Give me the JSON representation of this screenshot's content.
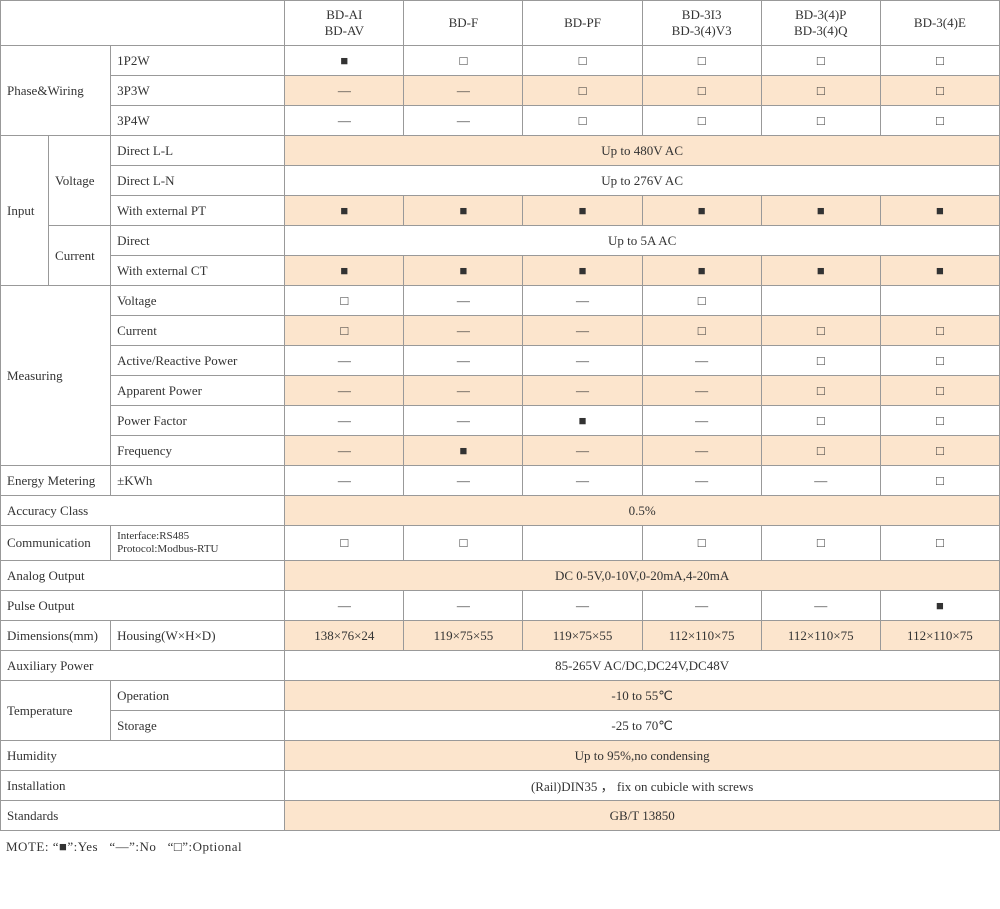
{
  "columns": [
    {
      "line1": "BD-AI",
      "line2": "BD-AV"
    },
    {
      "line1": "BD-F",
      "line2": ""
    },
    {
      "line1": "BD-PF",
      "line2": ""
    },
    {
      "line1": "BD-3I3",
      "line2": "BD-3(4)V3"
    },
    {
      "line1": "BD-3(4)P",
      "line2": "BD-3(4)Q"
    },
    {
      "line1": "BD-3(4)E",
      "line2": ""
    }
  ],
  "symbols": {
    "yes": "■",
    "no": "—",
    "opt": "□"
  },
  "colors": {
    "shade": "#fce5cd",
    "border": "#999999",
    "text": "#333333",
    "bg": "#ffffff"
  },
  "phase": {
    "label": "Phase&Wiring",
    "rows": [
      {
        "label": "1P2W",
        "vals": [
          "■",
          "□",
          "□",
          "□",
          "□",
          "□"
        ],
        "shaded": false
      },
      {
        "label": "3P3W",
        "vals": [
          "—",
          "—",
          "□",
          "□",
          "□",
          "□"
        ],
        "shaded": true
      },
      {
        "label": "3P4W",
        "vals": [
          "—",
          "—",
          "□",
          "□",
          "□",
          "□"
        ],
        "shaded": false
      }
    ]
  },
  "input": {
    "label": "Input",
    "voltage": {
      "label": "Voltage",
      "rows": [
        {
          "label": "Direct L-L",
          "span": "Up to 480V AC",
          "shaded": true
        },
        {
          "label": "Direct L-N",
          "span": "Up to 276V AC",
          "shaded": false
        },
        {
          "label": "With external PT",
          "vals": [
            "■",
            "■",
            "■",
            "■",
            "■",
            "■"
          ],
          "shaded": true
        }
      ]
    },
    "current": {
      "label": "Current",
      "rows": [
        {
          "label": "Direct",
          "span": "Up to 5A AC",
          "shaded": false
        },
        {
          "label": "With external CT",
          "vals": [
            "■",
            "■",
            "■",
            "■",
            "■",
            "■"
          ],
          "shaded": true
        }
      ]
    }
  },
  "measuring": {
    "label": "Measuring",
    "rows": [
      {
        "label": "Voltage",
        "vals": [
          "□",
          "—",
          "—",
          "□",
          "",
          ""
        ],
        "shaded": false
      },
      {
        "label": "Current",
        "vals": [
          "□",
          "—",
          "—",
          "□",
          "□",
          "□"
        ],
        "shaded": true
      },
      {
        "label": "Active/Reactive Power",
        "vals": [
          "—",
          "—",
          "—",
          "—",
          "□",
          "□"
        ],
        "shaded": false
      },
      {
        "label": "Apparent Power",
        "vals": [
          "—",
          "—",
          "—",
          "—",
          "□",
          "□"
        ],
        "shaded": true
      },
      {
        "label": "Power Factor",
        "vals": [
          "—",
          "—",
          "■",
          "—",
          "□",
          "□"
        ],
        "shaded": false
      },
      {
        "label": "Frequency",
        "vals": [
          "—",
          "■",
          "—",
          "—",
          "□",
          "□"
        ],
        "shaded": true
      }
    ]
  },
  "energy": {
    "label": "Energy Metering",
    "sub": "±KWh",
    "vals": [
      "—",
      "—",
      "—",
      "—",
      "—",
      "□"
    ],
    "shaded": false
  },
  "accuracy": {
    "label": "Accuracy Class",
    "span": "0.5%",
    "shaded": true
  },
  "comm": {
    "label": "Communication",
    "sub1": "Interface:RS485",
    "sub2": "Protocol:Modbus-RTU",
    "vals": [
      "□",
      "□",
      "",
      "□",
      "□",
      "□"
    ],
    "shaded": false
  },
  "analog": {
    "label": "Analog Output",
    "span": "DC 0-5V,0-10V,0-20mA,4-20mA",
    "shaded": true
  },
  "pulse": {
    "label": "Pulse Output",
    "vals": [
      "—",
      "—",
      "—",
      "—",
      "—",
      "■"
    ],
    "shaded": false
  },
  "dims": {
    "label": "Dimensions(mm)",
    "sub": "Housing(W×H×D)",
    "vals": [
      "138×76×24",
      "119×75×55",
      "119×75×55",
      "112×110×75",
      "112×110×75",
      "112×110×75"
    ],
    "shaded": true
  },
  "aux": {
    "label": "Auxiliary Power",
    "span": "85-265V AC/DC,DC24V,DC48V",
    "shaded": false
  },
  "temp": {
    "label": "Temperature",
    "rows": [
      {
        "label": "Operation",
        "span": "-10 to 55℃",
        "shaded": true
      },
      {
        "label": "Storage",
        "span": "-25 to 70℃",
        "shaded": false
      }
    ]
  },
  "humidity": {
    "label": "Humidity",
    "span": "Up to 95%,no condensing",
    "shaded": true
  },
  "install": {
    "label": "Installation",
    "span": "(Rail)DIN35 ， fix on cubicle with screws",
    "shaded": false
  },
  "standards": {
    "label": "Standards",
    "span": "GB/T 13850",
    "shaded": true
  },
  "note": "MOTE: “■”:Yes   “—”:No   “□”:Optional"
}
